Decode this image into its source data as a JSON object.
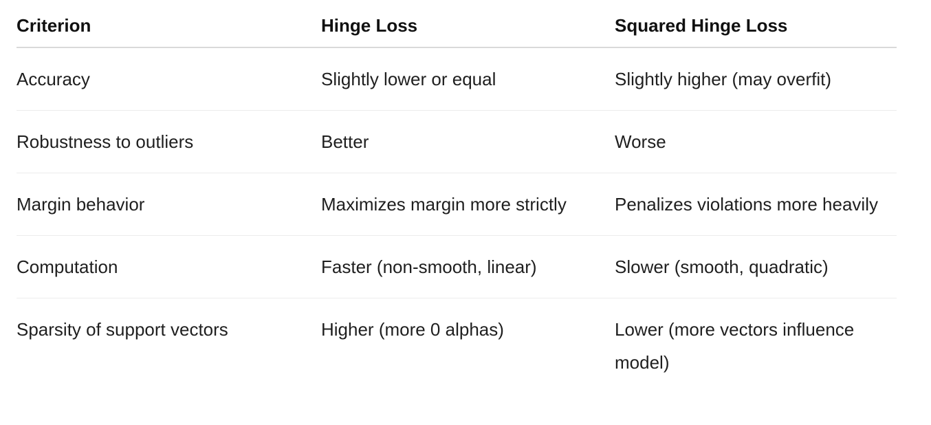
{
  "table": {
    "headers": [
      "Criterion",
      "Hinge Loss",
      "Squared Hinge Loss"
    ],
    "rows": [
      [
        "Accuracy",
        "Slightly lower or equal",
        "Slightly higher (may overfit)"
      ],
      [
        "Robustness to outliers",
        "Better",
        "Worse"
      ],
      [
        "Margin behavior",
        "Maximizes margin more strictly",
        "Penalizes violations more heavily"
      ],
      [
        "Computation",
        "Faster (non-smooth, linear)",
        "Slower (smooth, quadratic)"
      ],
      [
        "Sparsity of support vectors",
        "Higher (more 0 alphas)",
        "Lower (more vectors influence model)"
      ]
    ]
  }
}
